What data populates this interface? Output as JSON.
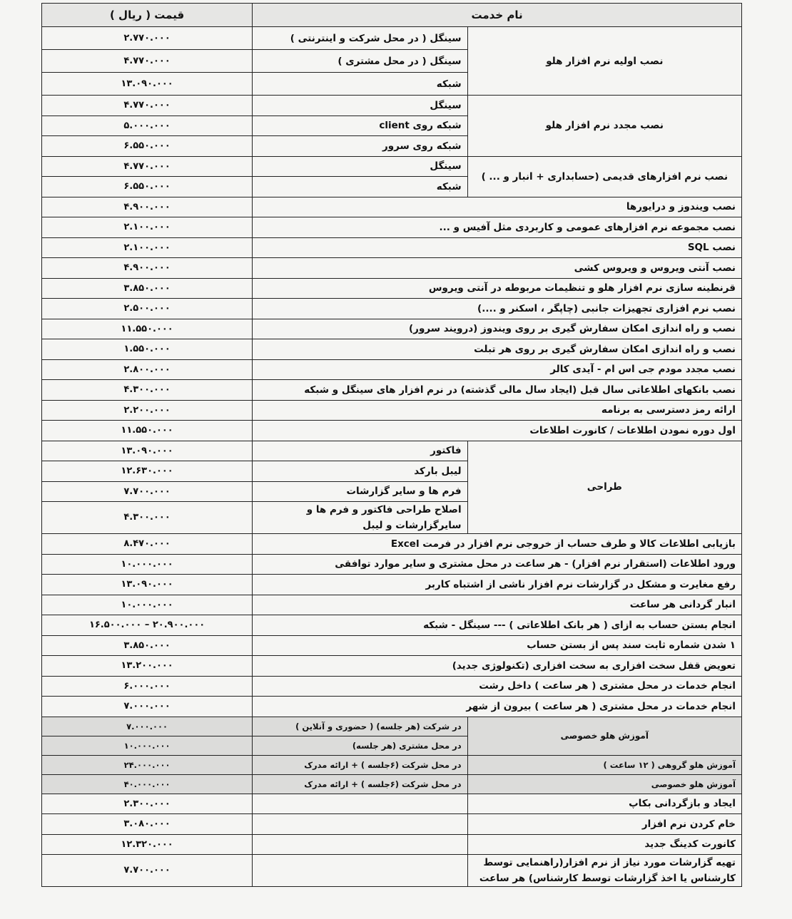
{
  "header": {
    "service_name": "نام خدمت",
    "price": "قیمت ( ریال )"
  },
  "main_rows": [
    {
      "name": "نصب اولیه نرم افزار هلو",
      "items": [
        {
          "label": "سینگل ( در محل شرکت و اینترنتی )",
          "price": "۲.۷۷۰.۰۰۰"
        },
        {
          "label": "سینگل ( در محل مشتری )",
          "price": "۴.۷۷۰.۰۰۰"
        },
        {
          "label": "شبکه",
          "price": "۱۳.۰۹۰.۰۰۰"
        }
      ]
    },
    {
      "name": "نصب مجدد نرم افزار هلو",
      "items": [
        {
          "label": "سینگل",
          "price": "۴.۷۷۰.۰۰۰"
        },
        {
          "label": "شبکه روی client",
          "price": "۵.۰۰۰.۰۰۰"
        },
        {
          "label": "شبکه روی سرور",
          "price": "۶.۵۵۰.۰۰۰"
        }
      ]
    },
    {
      "name": "نصب نرم افزارهای قدیمی (حسابداری + انبار و ... )",
      "items": [
        {
          "label": "سینگل",
          "price": "۴.۷۷۰.۰۰۰"
        },
        {
          "label": "شبکه",
          "price": "۶.۵۵۰.۰۰۰"
        }
      ]
    },
    {
      "label": "نصب ویندوز و درایورها",
      "price": "۴.۹۰۰.۰۰۰"
    },
    {
      "label": "نصب مجموعه نرم افزارهای عمومی و کاربردی مثل آفیس و ...",
      "price": "۲.۱۰۰.۰۰۰"
    },
    {
      "label": "نصب SQL",
      "price": "۲.۱۰۰.۰۰۰"
    },
    {
      "label": "نصب آنتی ویروس و ویروس کشی",
      "price": "۴.۹۰۰.۰۰۰"
    },
    {
      "label": "قرنطینه سازی نرم افزار هلو و تنظیمات مربوطه در آنتی ویروس",
      "price": "۳.۸۵۰.۰۰۰"
    },
    {
      "label": "نصب نرم افزاری تجهیزات جانبی (چاپگر ، اسکنر و ....)",
      "price": "۲.۵۰۰.۰۰۰"
    },
    {
      "label": "نصب و راه اندازی امکان سفارش گیری بر روی ویندوز (درویند سرور)",
      "price": "۱۱.۵۵۰.۰۰۰"
    },
    {
      "label": "نصب و راه اندازی امکان سفارش گیری بر روی هر تبلت",
      "price": "۱.۵۵۰.۰۰۰"
    },
    {
      "label": "نصب مجدد مودم جی اس ام - آیدی کالر",
      "price": "۲.۸۰۰.۰۰۰"
    },
    {
      "label": "نصب بانکهای اطلاعاتی سال قبل (ایجاد سال مالی گذشته) در نرم افزار های سینگل و شبکه",
      "price": "۴.۳۰۰.۰۰۰"
    },
    {
      "label": "ارائه رمز دسترسی به برنامه",
      "price": "۲.۲۰۰.۰۰۰"
    },
    {
      "label": "اول دوره نمودن اطلاعات / کانورت اطلاعات",
      "price": "۱۱.۵۵۰.۰۰۰"
    },
    {
      "name": "طراحی",
      "items": [
        {
          "label": "فاکتور",
          "price": "۱۳.۰۹۰.۰۰۰"
        },
        {
          "label": "لیبل بارکد",
          "price": "۱۲.۶۳۰.۰۰۰"
        },
        {
          "label": "فرم ها و سایر گزارشات",
          "price": "۷.۷۰۰.۰۰۰"
        },
        {
          "label": "اصلاح طراحی فاکتور و فرم ها و سایرگزارشات و لیبل",
          "price": "۴.۳۰۰.۰۰۰"
        }
      ]
    },
    {
      "label": "بازیابی اطلاعات کالا و طرف حساب از خروجی نرم افزار در فرمت Excel",
      "price": "۸.۴۷۰.۰۰۰"
    },
    {
      "label": "ورود اطلاعات (استقرار نرم افزار) - هر ساعت در محل مشتری و سایر موارد توافقی",
      "price": "۱۰.۰۰۰.۰۰۰"
    },
    {
      "label": "رفع مغایرت و مشکل در گزارشات نرم افزار ناشی از اشتباه کاربر",
      "price": "۱۳.۰۹۰.۰۰۰"
    },
    {
      "label": "انبار گردانی   هر ساعت",
      "price": "۱۰.۰۰۰.۰۰۰"
    },
    {
      "label": "انجام بستن حساب به ازای ( هر بانک اطلاعاتی ) --- سینگل - شبکه",
      "price": "۱۶.۵۰۰.۰۰۰ – ۲۰.۹۰۰.۰۰۰"
    },
    {
      "label": "۱ شدن شماره ثابت سند پس از بستن حساب",
      "price": "۳.۸۵۰.۰۰۰"
    },
    {
      "label": "تعویض قفل سخت افزاری به سخت افزاری (تکنولوژی جدید)",
      "price": "۱۳.۲۰۰.۰۰۰"
    },
    {
      "label": "انجام خدمات در محل مشتری ( هر ساعت ) داخل رشت",
      "price": "۶.۰۰۰.۰۰۰"
    },
    {
      "label": "انجام خدمات در محل مشتری ( هر ساعت ) بیرون از شهر",
      "price": "۷.۰۰۰.۰۰۰"
    }
  ],
  "training_rows": [
    {
      "name": "آموزش هلو خصوصی",
      "items": [
        {
          "label": "در شرکت (هر جلسه) ( حضوری و آنلاین )",
          "price": "۷.۰۰۰.۰۰۰"
        },
        {
          "label": "در محل مشتری (هر جلسه)",
          "price": "۱۰.۰۰۰.۰۰۰"
        }
      ]
    },
    {
      "name": "آموزش هلو گروهی ( ۱۲ ساعت )",
      "sub": "در محل شرکت (۶جلسه ) + ارائه مدرک",
      "price": "۲۴.۰۰۰.۰۰۰"
    },
    {
      "name": "آموزش هلو خصوصی",
      "sub": "در محل شرکت (۶جلسه ) + ارائه مدرک",
      "price": "۴۰.۰۰۰.۰۰۰"
    }
  ],
  "tail_rows": [
    {
      "name": "ایجاد و بازگردانی بکاپ",
      "sub": "",
      "price": "۲.۳۰۰.۰۰۰"
    },
    {
      "name": "خام کردن نرم افزار",
      "sub": "",
      "price": "۳.۰۸۰.۰۰۰"
    },
    {
      "name": "کانورت کدینگ جدید",
      "sub": "",
      "price": "۱۲.۳۲۰.۰۰۰"
    },
    {
      "name": "تهیه گزارشات مورد نیاز از نرم افزار(راهنمایی توسط کارشناس یا اخذ گزارشات توسط کارشناس) هر ساعت",
      "sub": "",
      "price": "۷.۷۰۰.۰۰۰"
    }
  ]
}
